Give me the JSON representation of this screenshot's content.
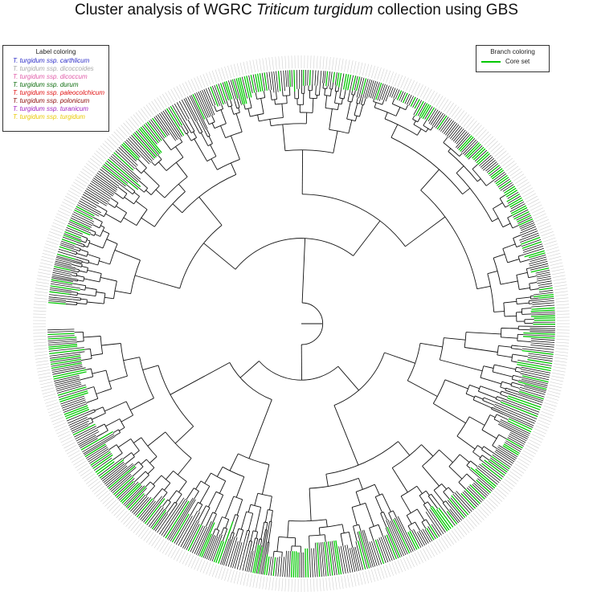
{
  "title": {
    "prefix": "Cluster analysis of WGRC ",
    "italic": "Triticum turgidum",
    "suffix": " collection using GBS"
  },
  "label_legend": {
    "title": "Label coloring",
    "items": [
      {
        "label": "T. turgidum ssp. carthlicum",
        "color": "#2d2dc8"
      },
      {
        "label": "T. turgidum ssp. dicoccoides",
        "color": "#a8a8a8"
      },
      {
        "label": "T. turgidum ssp. dicoccum",
        "color": "#e05aa8"
      },
      {
        "label": "T. turgidum ssp. durum",
        "color": "#0b6b0b"
      },
      {
        "label": "T. turgidum ssp. paleocolchicum",
        "color": "#e01010"
      },
      {
        "label": "T. turgidum ssp. polonicum",
        "color": "#8b0a0a"
      },
      {
        "label": "T. turgidum ssp. turanicum",
        "color": "#a020c0"
      },
      {
        "label": "T. turgidum ssp. turgidum",
        "color": "#e8c800"
      }
    ]
  },
  "branch_legend": {
    "title": "Branch coloring",
    "item_label": "Core set",
    "color": "#00c800"
  },
  "tree_colors": {
    "branch": "#111111",
    "core": "#00c800"
  }
}
